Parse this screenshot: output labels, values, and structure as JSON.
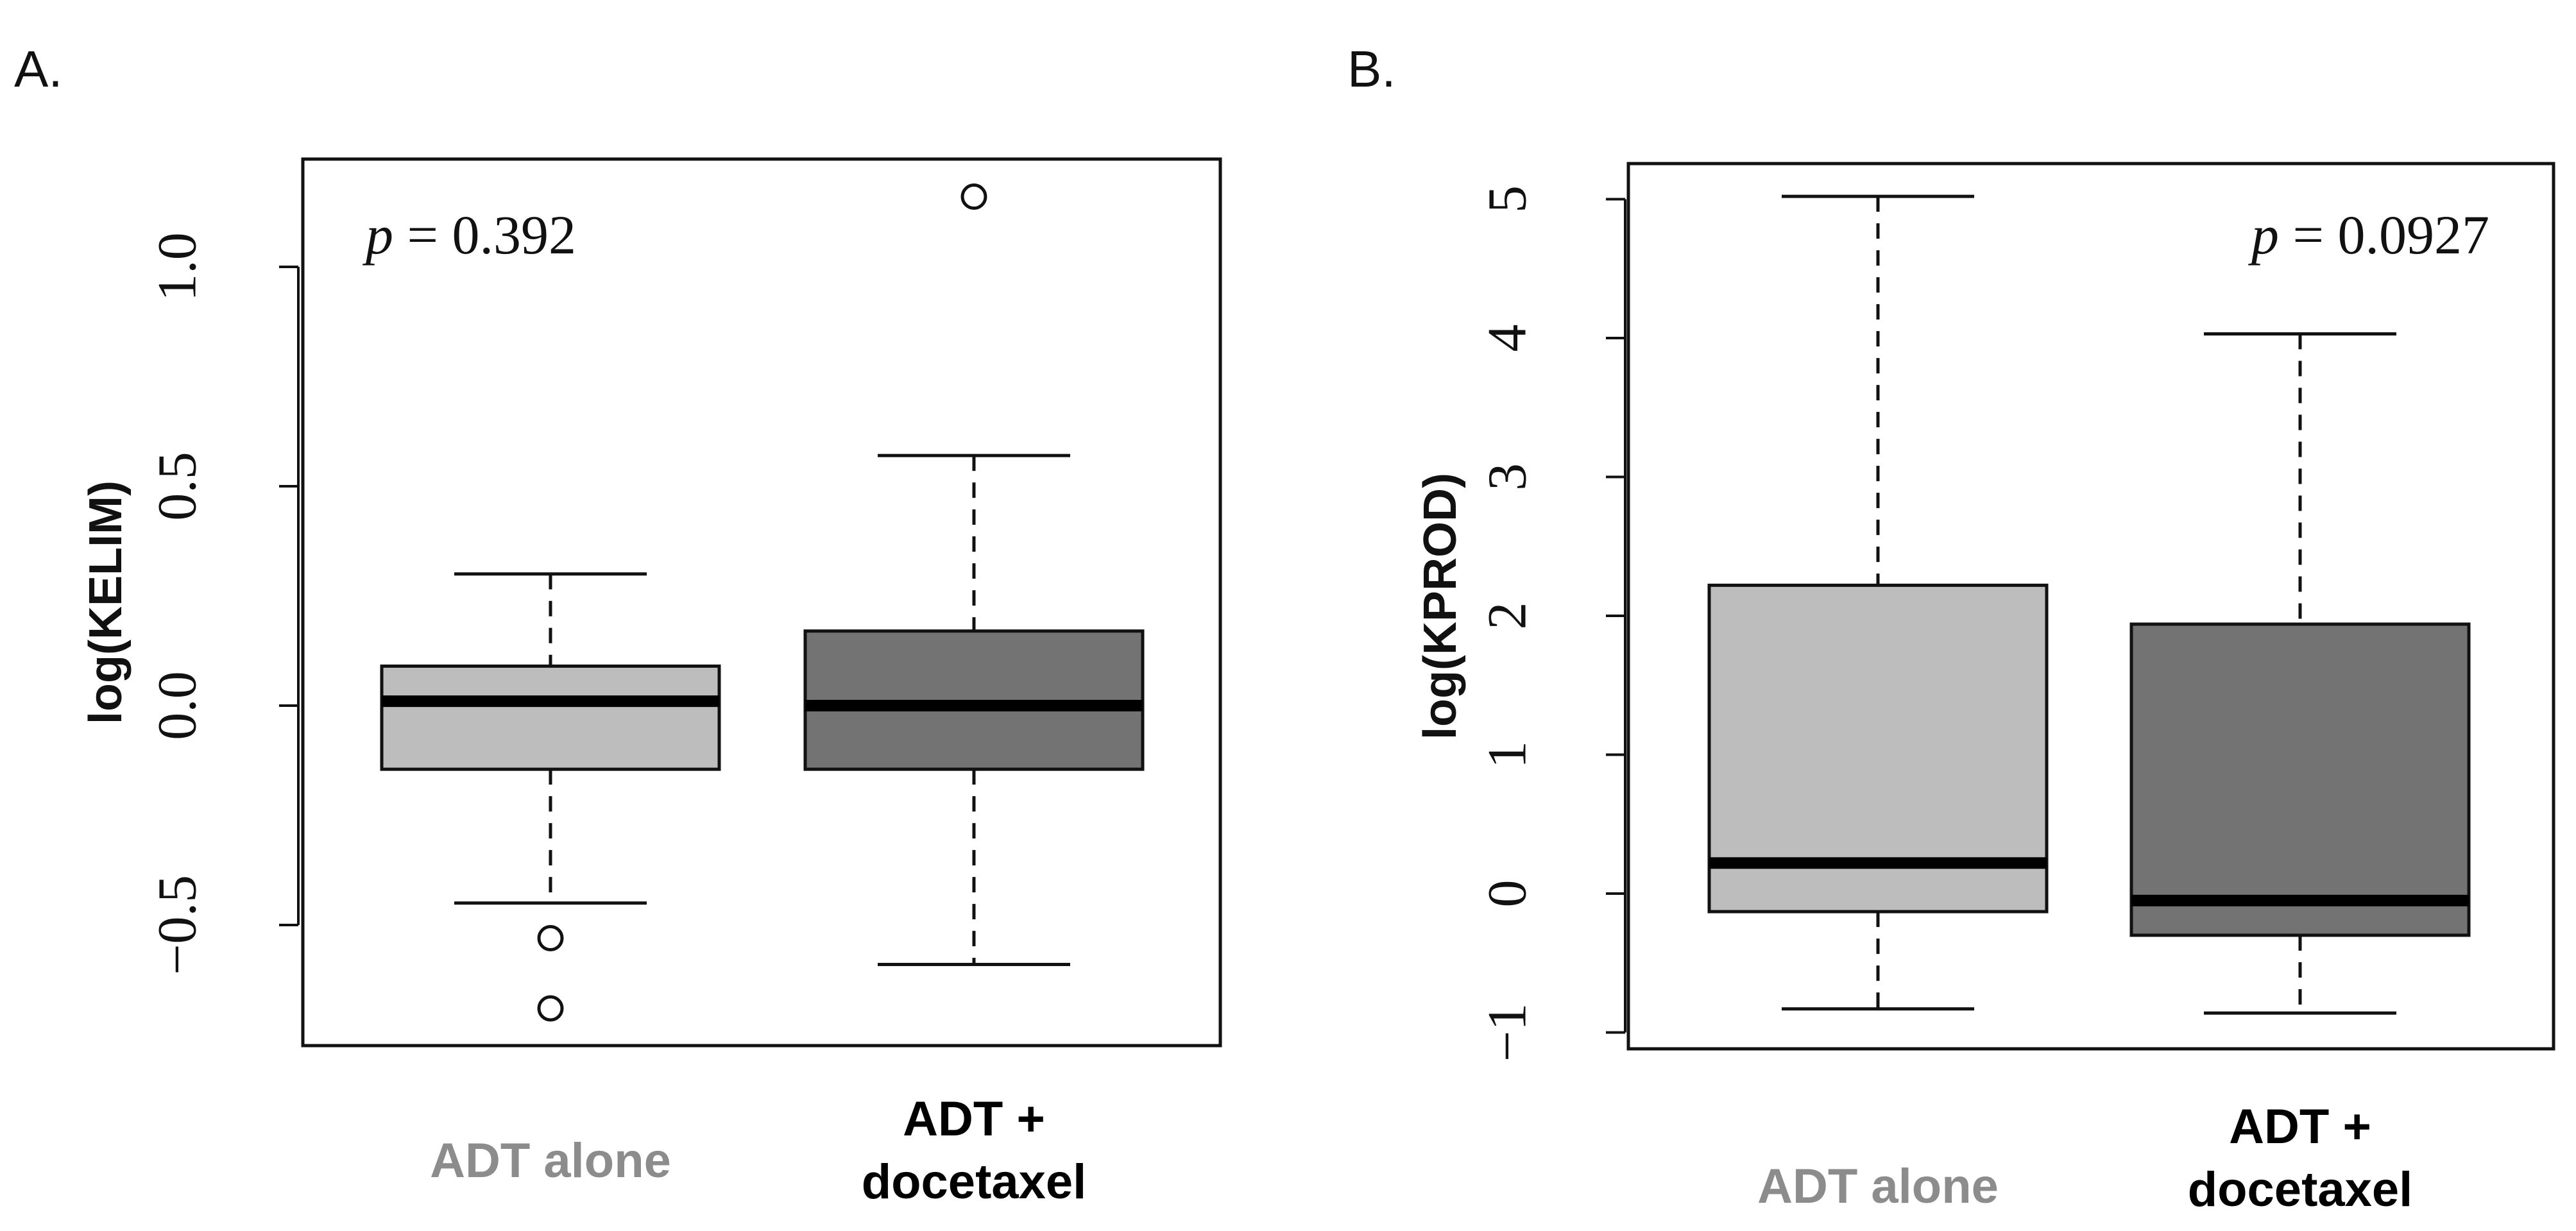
{
  "panels": [
    {
      "letter": "A.",
      "p_label": "p",
      "p_value_text": "= 0.392",
      "categories": [
        {
          "label_lines": [
            "ADT alone"
          ],
          "color": "#8c8c8c"
        },
        {
          "label_lines": [
            "ADT +",
            "docetaxel"
          ],
          "color": "#000000"
        }
      ]
    },
    {
      "letter": "B.",
      "p_label": "p",
      "p_value_text": "= 0.0927",
      "categories": [
        {
          "label_lines": [
            "ADT alone"
          ],
          "color": "#8c8c8c"
        },
        {
          "label_lines": [
            "ADT +",
            "docetaxel"
          ],
          "color": "#000000"
        }
      ]
    }
  ],
  "chart_data": [
    {
      "type": "box",
      "title": "",
      "ylabel": "log(KELIM)",
      "xlabel": "",
      "ylim": [
        -0.75,
        1.25
      ],
      "yticks": [
        -0.5,
        0.0,
        0.5,
        1.0
      ],
      "ytick_labels": [
        "−0.5",
        "0.0",
        "0.5",
        "1.0"
      ],
      "annotation": "p = 0.392",
      "categories": [
        "ADT alone",
        "ADT + docetaxel"
      ],
      "series": [
        {
          "name": "ADT alone",
          "fill": "#bdbdbd",
          "whisker_low": -0.45,
          "q1": -0.145,
          "median": 0.01,
          "q3": 0.09,
          "whisker_high": 0.3,
          "outliers": [
            -0.53,
            -0.69
          ]
        },
        {
          "name": "ADT + docetaxel",
          "fill": "#737373",
          "whisker_low": -0.59,
          "q1": -0.145,
          "median": 0.0,
          "q3": 0.17,
          "whisker_high": 0.57,
          "outliers": [
            1.16
          ]
        }
      ]
    },
    {
      "type": "box",
      "title": "",
      "ylabel": "log(KPROD)",
      "xlabel": "",
      "ylim": [
        -1.1,
        5.3
      ],
      "yticks": [
        -1,
        0,
        1,
        2,
        3,
        4,
        5
      ],
      "ytick_labels": [
        "−1",
        "0",
        "1",
        "2",
        "3",
        "4",
        "5"
      ],
      "annotation": "p = 0.0927",
      "categories": [
        "ADT alone",
        "ADT + docetaxel"
      ],
      "series": [
        {
          "name": "ADT alone",
          "fill": "#bdbdbd",
          "whisker_low": -0.83,
          "q1": -0.13,
          "median": 0.22,
          "q3": 2.22,
          "whisker_high": 5.02,
          "outliers": []
        },
        {
          "name": "ADT + docetaxel",
          "fill": "#737373",
          "whisker_low": -0.86,
          "q1": -0.3,
          "median": -0.05,
          "q3": 1.94,
          "whisker_high": 4.03,
          "outliers": []
        }
      ]
    }
  ]
}
